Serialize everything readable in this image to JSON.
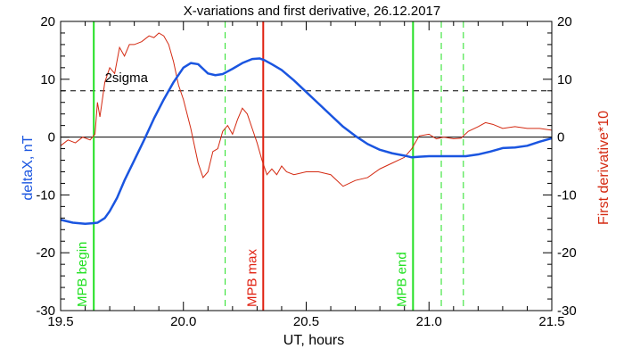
{
  "chart_data": {
    "type": "line",
    "title": "X-variations and first derivative, 26.12.2017",
    "xlabel": "UT, hours",
    "ylabel_left": "deltaX, nT",
    "ylabel_right": "First derivative*10",
    "xlim": [
      19.5,
      21.5
    ],
    "ylim_left": [
      -30,
      20
    ],
    "ylim_right": [
      -30,
      20
    ],
    "x_ticks": [
      "19.5",
      "20.0",
      "20.5",
      "21.0",
      "21.5"
    ],
    "y_ticks_left": [
      "20",
      "10",
      "0",
      "-10",
      "-20",
      "-30"
    ],
    "y_ticks_right": [
      "20",
      "10",
      "0",
      "-10",
      "-20",
      "-30"
    ],
    "colors": {
      "deltaX": "#1a55e0",
      "derivative": "#d42a12",
      "mpb_marker": "#22e022",
      "mpb_max": "#e02010",
      "sigma": "#000000",
      "zero": "#000000"
    },
    "series": [
      {
        "axis": "left",
        "x": [
          19.5,
          19.55,
          19.6,
          19.63,
          19.65,
          19.68,
          19.7,
          19.73,
          19.76,
          19.8,
          19.84,
          19.88,
          19.92,
          19.96,
          20.0,
          20.03,
          20.06,
          20.08,
          20.1,
          20.13,
          20.16,
          20.2,
          20.24,
          20.28,
          20.31,
          20.33,
          20.36,
          20.4,
          20.45,
          20.5,
          20.55,
          20.6,
          20.65,
          20.7,
          20.75,
          20.8,
          20.85,
          20.9,
          20.93,
          20.96,
          21.0,
          21.05,
          21.1,
          21.15,
          21.2,
          21.25,
          21.3,
          21.35,
          21.4,
          21.45,
          21.5
        ],
        "y": [
          -14.3,
          -14.8,
          -15.0,
          -14.9,
          -14.8,
          -14.0,
          -12.8,
          -10.5,
          -7.5,
          -4.0,
          -0.5,
          3.2,
          6.5,
          9.5,
          12.0,
          12.8,
          12.6,
          11.8,
          11.0,
          10.7,
          10.9,
          11.8,
          12.8,
          13.5,
          13.6,
          13.3,
          12.6,
          11.6,
          9.8,
          7.8,
          5.8,
          3.8,
          1.8,
          0.2,
          -1.2,
          -2.2,
          -2.8,
          -3.2,
          -3.5,
          -3.4,
          -3.3,
          -3.3,
          -3.3,
          -3.3,
          -3.0,
          -2.5,
          -1.9,
          -1.8,
          -1.5,
          -0.8,
          -0.2
        ]
      },
      {
        "axis": "right",
        "x": [
          19.5,
          19.53,
          19.56,
          19.59,
          19.62,
          19.64,
          19.65,
          19.66,
          19.68,
          19.7,
          19.72,
          19.74,
          19.76,
          19.78,
          19.8,
          19.83,
          19.86,
          19.88,
          19.9,
          19.92,
          19.94,
          19.96,
          19.98,
          20.0,
          20.03,
          20.06,
          20.08,
          20.1,
          20.12,
          20.14,
          20.16,
          20.18,
          20.2,
          20.22,
          20.24,
          20.26,
          20.28,
          20.3,
          20.32,
          20.34,
          20.36,
          20.38,
          20.4,
          20.42,
          20.45,
          20.5,
          20.55,
          20.6,
          20.65,
          20.7,
          20.75,
          20.8,
          20.85,
          20.9,
          20.93,
          20.96,
          21.0,
          21.03,
          21.06,
          21.1,
          21.13,
          21.16,
          21.2,
          21.23,
          21.26,
          21.3,
          21.35,
          21.4,
          21.45,
          21.5
        ],
        "y": [
          -1.5,
          -0.5,
          -1.0,
          0.0,
          -0.5,
          0.5,
          6.0,
          3.5,
          9.5,
          12.0,
          11.0,
          15.5,
          14.0,
          16.0,
          16.0,
          16.5,
          17.5,
          17.2,
          18.0,
          17.5,
          16.0,
          13.0,
          9.0,
          6.5,
          1.5,
          -4.5,
          -7.0,
          -6.0,
          -2.5,
          -2.0,
          1.0,
          2.0,
          0.5,
          3.0,
          5.0,
          4.0,
          1.5,
          -1.0,
          -4.0,
          -6.5,
          -5.5,
          -6.5,
          -5.0,
          -6.0,
          -6.5,
          -6.0,
          -6.0,
          -6.5,
          -8.5,
          -7.5,
          -7.0,
          -5.5,
          -4.5,
          -3.5,
          -2.0,
          0.2,
          0.5,
          -0.3,
          0.0,
          -0.3,
          -0.2,
          1.0,
          1.8,
          2.5,
          2.2,
          1.5,
          1.8,
          1.5,
          1.5,
          1.2
        ]
      }
    ],
    "reference_lines": {
      "sigma_level": 8,
      "zero_level": 0
    },
    "markers": [
      {
        "x": 19.635,
        "label": "MPB begin",
        "style": "solid",
        "color": "#22e022"
      },
      {
        "x": 20.325,
        "label": "MPB max",
        "style": "solid",
        "color": "#e02010"
      },
      {
        "x": 20.935,
        "label": "MPB end",
        "style": "solid",
        "color": "#22e022"
      },
      {
        "x": 20.17,
        "label": "",
        "style": "dashed",
        "color": "#22e022"
      },
      {
        "x": 21.05,
        "label": "",
        "style": "dashed",
        "color": "#22e022"
      },
      {
        "x": 21.14,
        "label": "",
        "style": "dashed",
        "color": "#22e022"
      }
    ],
    "annotations": [
      {
        "text": "2sigma",
        "x": 19.68,
        "y": 9.5
      }
    ]
  }
}
